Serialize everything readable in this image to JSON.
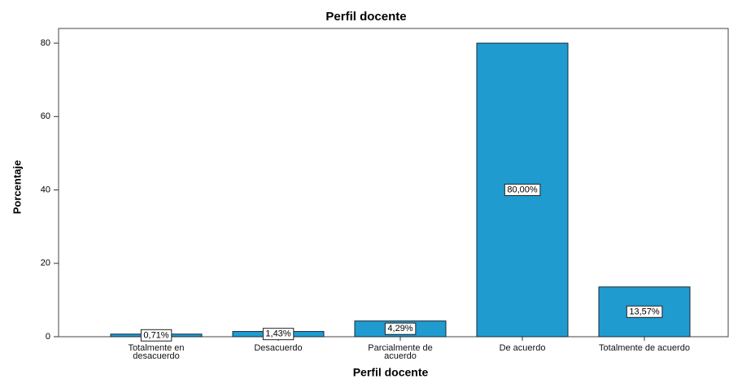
{
  "chart_data": {
    "type": "bar",
    "title": "Perfil docente",
    "x_label": "Perfil docente",
    "y_label": "Porcentaje",
    "categories": [
      "Totalmente en desacuerdo",
      "Desacuerdo",
      "Parcialmente de acuerdo",
      "De acuerdo",
      "Totalmente de acuerdo"
    ],
    "values": [
      0.71,
      1.43,
      4.29,
      80.0,
      13.57
    ],
    "value_labels": [
      "0,71%",
      "1,43%",
      "4,29%",
      "80,00%",
      "13,57%"
    ],
    "color": "#1f9bcf",
    "ylim": [
      0,
      84
    ],
    "yticks": [
      0,
      20,
      40,
      60,
      80
    ],
    "grid": false
  }
}
